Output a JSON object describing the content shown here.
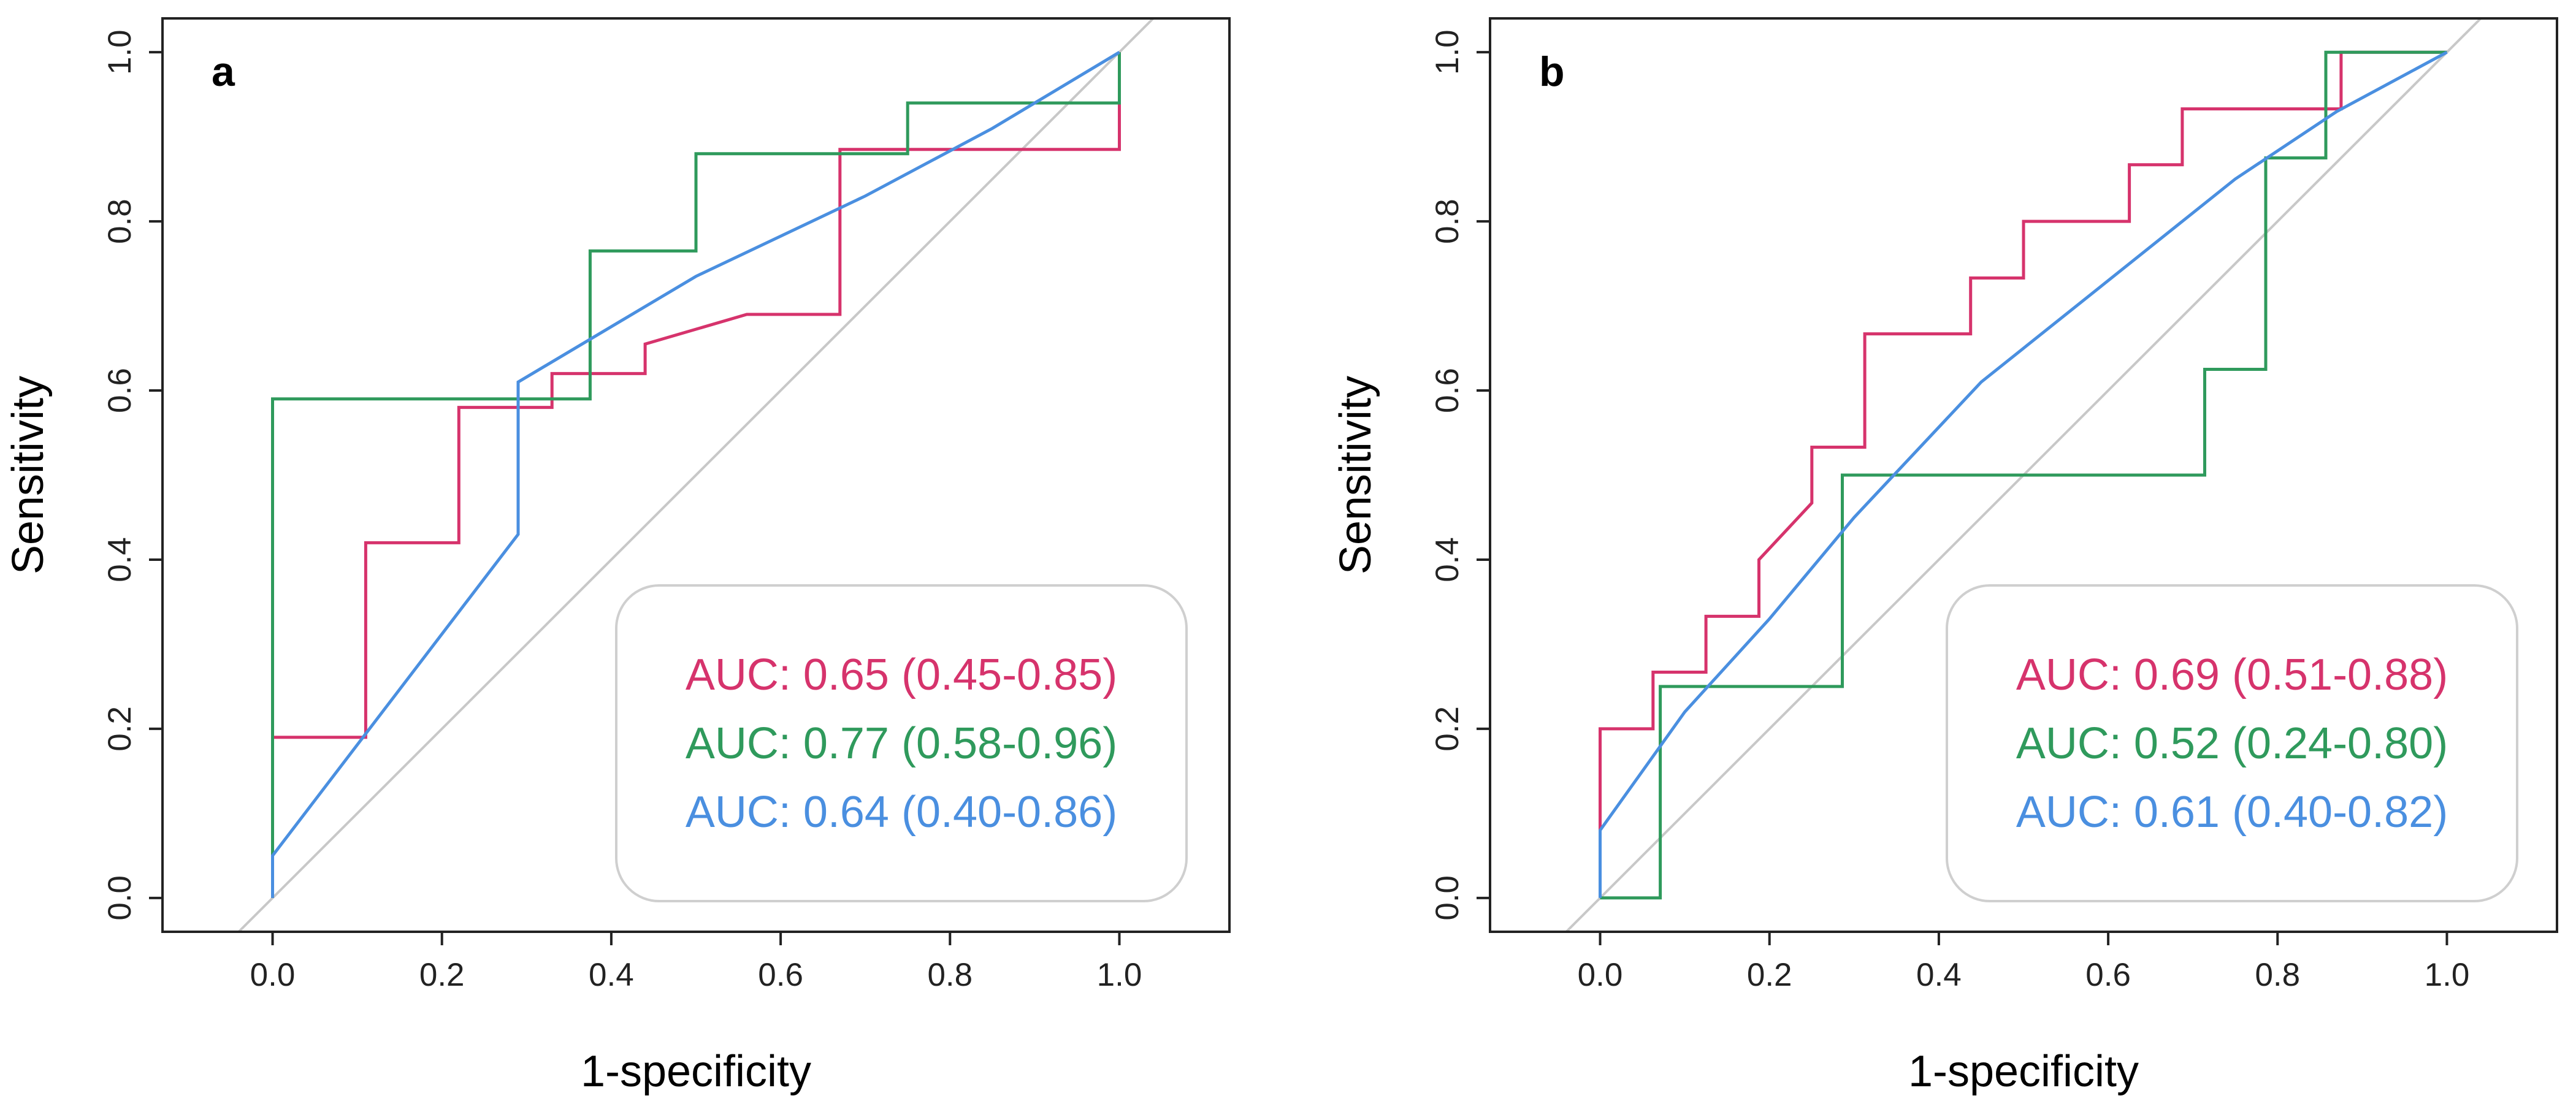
{
  "colors": {
    "red": "#d6336c",
    "green": "#2f9a5c",
    "blue": "#4a8fe0",
    "diagonal": "#c8c8c8",
    "axis": "#222222"
  },
  "chart_data": [
    {
      "type": "line",
      "panel_label": "a",
      "xlabel": "1-specificity",
      "ylabel": "Sensitivity",
      "xlim": [
        -0.13,
        1.13
      ],
      "ylim": [
        -0.04,
        1.04
      ],
      "xticks": [
        "0.0",
        "0.2",
        "0.4",
        "0.6",
        "0.8",
        "1.0"
      ],
      "yticks": [
        "0.0",
        "0.2",
        "0.4",
        "0.6",
        "0.8",
        "1.0"
      ],
      "diagonal": true,
      "legend_position": "bottom-right",
      "series": [
        {
          "name": "AUC: 0.65 (0.45-0.85)",
          "color_key": "red",
          "x": [
            0,
            0,
            0.11,
            0.11,
            0.22,
            0.22,
            0.33,
            0.33,
            0.44,
            0.44,
            0.56,
            0.67,
            0.67,
            1.0,
            1.0
          ],
          "y": [
            0,
            0.19,
            0.19,
            0.42,
            0.42,
            0.58,
            0.58,
            0.62,
            0.62,
            0.655,
            0.69,
            0.69,
            0.885,
            0.885,
            1.0
          ]
        },
        {
          "name": "AUC: 0.77 (0.58-0.96)",
          "color_key": "green",
          "x": [
            0,
            0,
            0.375,
            0.375,
            0.5,
            0.5,
            0.75,
            0.75,
            1.0,
            1.0
          ],
          "y": [
            0,
            0.59,
            0.59,
            0.765,
            0.765,
            0.88,
            0.88,
            0.94,
            0.94,
            1.0
          ]
        },
        {
          "name": "AUC: 0.64 (0.40-0.86)",
          "color_key": "blue",
          "x": [
            0,
            0,
            0.29,
            0.29,
            0.5,
            0.7,
            0.85,
            1.0
          ],
          "y": [
            0,
            0.05,
            0.43,
            0.61,
            0.735,
            0.83,
            0.91,
            1.0
          ]
        }
      ]
    },
    {
      "type": "line",
      "panel_label": "b",
      "xlabel": "1-specificity",
      "ylabel": "Sensitivity",
      "xlim": [
        -0.13,
        1.13
      ],
      "ylim": [
        -0.04,
        1.04
      ],
      "xticks": [
        "0.0",
        "0.2",
        "0.4",
        "0.6",
        "0.8",
        "1.0"
      ],
      "yticks": [
        "0.0",
        "0.2",
        "0.4",
        "0.6",
        "0.8",
        "1.0"
      ],
      "diagonal": true,
      "legend_position": "bottom-right",
      "series": [
        {
          "name": "AUC: 0.69 (0.51-0.88)",
          "color_key": "red",
          "x": [
            0,
            0,
            0.0625,
            0.0625,
            0.125,
            0.125,
            0.1875,
            0.1875,
            0.25,
            0.25,
            0.3125,
            0.3125,
            0.4375,
            0.4375,
            0.5,
            0.5,
            0.625,
            0.625,
            0.6875,
            0.6875,
            0.875,
            0.875,
            1.0
          ],
          "y": [
            0.08,
            0.2,
            0.2,
            0.267,
            0.267,
            0.333,
            0.333,
            0.4,
            0.467,
            0.533,
            0.533,
            0.667,
            0.667,
            0.733,
            0.733,
            0.8,
            0.8,
            0.867,
            0.867,
            0.933,
            0.933,
            1.0,
            1.0
          ]
        },
        {
          "name": "AUC: 0.52 (0.24-0.80)",
          "color_key": "green",
          "x": [
            0,
            0.071,
            0.071,
            0.286,
            0.286,
            0.714,
            0.714,
            0.786,
            0.786,
            0.857,
            0.857,
            1.0
          ],
          "y": [
            0,
            0,
            0.25,
            0.25,
            0.5,
            0.5,
            0.625,
            0.625,
            0.875,
            0.875,
            1.0,
            1.0
          ]
        },
        {
          "name": "AUC: 0.61 (0.40-0.82)",
          "color_key": "blue",
          "x": [
            0,
            0,
            0.1,
            0.2,
            0.3,
            0.45,
            0.6,
            0.75,
            0.87,
            1.0
          ],
          "y": [
            0,
            0.08,
            0.22,
            0.33,
            0.45,
            0.61,
            0.73,
            0.85,
            0.93,
            1.0
          ]
        }
      ]
    }
  ]
}
